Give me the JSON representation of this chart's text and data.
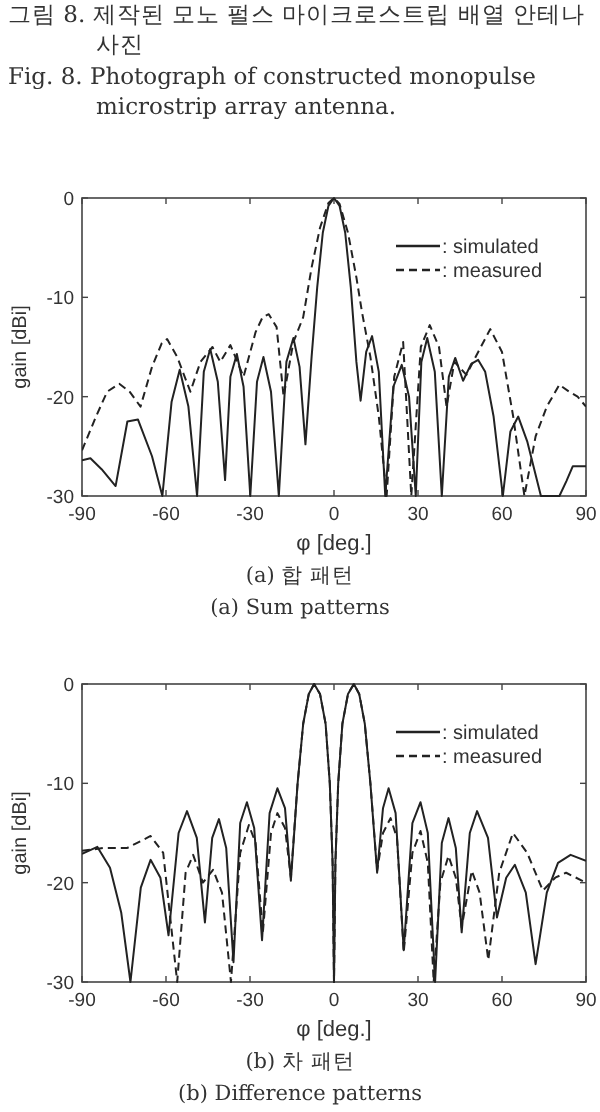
{
  "chart_data": [
    {
      "type": "line",
      "title": "(a) 합 패턴",
      "subtitle": "(a) Sum patterns",
      "xlabel": "φ [deg.]",
      "ylabel": "gain [dBi]",
      "annotations": [
        "그림 8. 제작된 모노 펄스 마이크로스트립 배열 안테나 사진",
        "Fig. 8. Photograph of constructed monopulse microstrip array antenna."
      ],
      "xlim": [
        -90,
        90
      ],
      "ylim": [
        -30,
        0
      ],
      "xticks": [
        -90,
        -60,
        -30,
        0,
        30,
        60,
        90
      ],
      "yticks": [
        -30,
        -20,
        -10,
        0
      ],
      "grid": false,
      "legend": "top right",
      "series": [
        {
          "name": ": simulated",
          "color": "#222222",
          "line_style": "solid",
          "x": [
            -90,
            -87,
            -83,
            -78,
            -73.8,
            -70,
            -65,
            -61.3,
            -58,
            -55.1,
            -52,
            -48.9,
            -46.5,
            -44.2,
            -41.5,
            -38.9,
            -37,
            -34.7,
            -32.3,
            -29.9,
            -27.5,
            -25.2,
            -22.5,
            -19.7,
            -17,
            -14.5,
            -12.3,
            -10.2,
            -8,
            -6,
            -4,
            -2,
            0,
            2,
            4,
            6,
            8,
            9.5,
            11.5,
            13.6,
            16,
            18.3,
            21.2,
            24.2,
            26.8,
            29.2,
            31.2,
            33.3,
            36,
            38.5,
            41,
            43.3,
            46.1,
            49,
            51.5,
            54,
            57,
            60.3,
            63,
            65.8,
            69,
            73.9,
            80.5,
            83,
            85.3,
            90
          ],
          "values": [
            -26.4,
            -26.2,
            -27.3,
            -29,
            -22.5,
            -22.3,
            -26,
            -30,
            -20.5,
            -17.3,
            -21,
            -30,
            -17.5,
            -15.2,
            -18.5,
            -28.4,
            -18,
            -15.7,
            -19,
            -30,
            -18.5,
            -16,
            -19.5,
            -30,
            -16.5,
            -14.1,
            -17,
            -24.8,
            -16,
            -9,
            -3.5,
            -0.8,
            0,
            -0.8,
            -3.5,
            -9,
            -16.5,
            -20.4,
            -15.5,
            -13.9,
            -17.5,
            -30,
            -19,
            -16.8,
            -20,
            -30,
            -16.5,
            -14.1,
            -17.5,
            -30,
            -18,
            -16.1,
            -18.4,
            -16.7,
            -16.3,
            -17.5,
            -22,
            -30,
            -23.5,
            -22,
            -24.5,
            -30,
            -30,
            -28.5,
            -27,
            -27
          ]
        },
        {
          "name": ": measured",
          "color": "#222222",
          "line_style": "dashed",
          "x": [
            -90,
            -85,
            -81,
            -76.7,
            -73,
            -69.1,
            -65,
            -61.5,
            -59.6,
            -56,
            -51.3,
            -47.7,
            -43.4,
            -40.6,
            -37,
            -32.3,
            -28,
            -25.5,
            -23.3,
            -20.5,
            -18,
            -14.5,
            -11,
            -8,
            -5,
            -2,
            0,
            2,
            5,
            8,
            10,
            13,
            16,
            18.8,
            21.5,
            24.7,
            27.6,
            31,
            34.2,
            37.5,
            40.2,
            43,
            47.3,
            51.5,
            55.8,
            60,
            64,
            68,
            72,
            76,
            80.5,
            84,
            87,
            90
          ],
          "values": [
            -25.4,
            -22,
            -19.5,
            -18.7,
            -19.5,
            -21,
            -17,
            -14.6,
            -14.2,
            -16,
            -19.5,
            -16.5,
            -15,
            -16.5,
            -14.8,
            -18,
            -13.5,
            -12,
            -11.7,
            -13,
            -20,
            -14.5,
            -12,
            -7,
            -3,
            -0.5,
            0,
            -0.6,
            -3.5,
            -8,
            -11.5,
            -16,
            -22,
            -30,
            -18,
            -14.5,
            -30,
            -15,
            -12.8,
            -15,
            -21,
            -16.5,
            -17.8,
            -15.5,
            -13.2,
            -15.5,
            -22,
            -30,
            -24,
            -21,
            -18.8,
            -19.5,
            -20,
            -21
          ]
        }
      ]
    },
    {
      "type": "line",
      "title": "(b) 차 패턴",
      "subtitle": "(b) Difference patterns",
      "xlabel": "φ [deg.]",
      "ylabel": "gain [dBi]",
      "xlim": [
        -90,
        90
      ],
      "ylim": [
        -30,
        0
      ],
      "xticks": [
        -90,
        -60,
        -30,
        0,
        30,
        60,
        90
      ],
      "yticks": [
        -30,
        -20,
        -10,
        0
      ],
      "grid": false,
      "legend": "top right",
      "series": [
        {
          "name": ": simulated",
          "color": "#222222",
          "line_style": "solid",
          "x": [
            -90,
            -84.5,
            -80,
            -76,
            -72.7,
            -69,
            -65.5,
            -62,
            -59.1,
            -55.5,
            -52.5,
            -49,
            -46.1,
            -43.5,
            -41.1,
            -38.5,
            -35.9,
            -33.5,
            -31.1,
            -28.5,
            -25.7,
            -23,
            -20.2,
            -17.5,
            -15.4,
            -13,
            -11,
            -9,
            -7.1,
            -5,
            -3,
            -1.5,
            -0.5,
            0,
            0.5,
            1.5,
            3,
            5,
            7.1,
            9,
            11,
            13,
            15.4,
            17.5,
            19.5,
            22,
            24.9,
            28,
            30.9,
            33.5,
            36.1,
            38.5,
            40.9,
            43.5,
            45.6,
            48.5,
            51.1,
            55,
            58.2,
            61.5,
            64.6,
            68.5,
            72,
            76,
            80,
            84.5,
            90
          ],
          "values": [
            -17.1,
            -16.4,
            -18.5,
            -23,
            -30,
            -20.5,
            -17.7,
            -19.5,
            -25.3,
            -15,
            -12.8,
            -15.5,
            -24,
            -15.5,
            -13.6,
            -16.5,
            -28,
            -14,
            -11.9,
            -14.5,
            -25.8,
            -13,
            -10.5,
            -12.5,
            -19.8,
            -10,
            -4,
            -1,
            0,
            -1,
            -4,
            -10,
            -18,
            -30,
            -18,
            -10,
            -4,
            -1,
            0,
            -1,
            -4,
            -10,
            -19,
            -12.5,
            -10.5,
            -13,
            -26.8,
            -14,
            -11.9,
            -15,
            -30,
            -16,
            -13.5,
            -16.5,
            -25,
            -15,
            -12.8,
            -15.5,
            -23.5,
            -19.5,
            -18.2,
            -21,
            -28.2,
            -21,
            -18,
            -17.2,
            -17.8
          ]
        },
        {
          "name": ": measured",
          "color": "#222222",
          "line_style": "dashed",
          "x": [
            -90,
            -82,
            -73.8,
            -65.5,
            -61,
            -56,
            -53,
            -50.3,
            -46.8,
            -43.2,
            -40,
            -36.8,
            -33.5,
            -30.4,
            -28,
            -25.4,
            -22.5,
            -20.2,
            -17.5,
            -15.4,
            -13,
            -11,
            -9,
            -7.1,
            -5,
            -3,
            -1.5,
            -0.5,
            0,
            0.5,
            1.5,
            3,
            5,
            7.1,
            9,
            11,
            13,
            15.4,
            17.5,
            20.2,
            22.5,
            24.9,
            28,
            30.9,
            33.5,
            35.6,
            38,
            40.9,
            43.5,
            45.6,
            49.2,
            52,
            55.1,
            59,
            63.9,
            69,
            74.6,
            79,
            82.9,
            90
          ],
          "values": [
            -16.8,
            -16.5,
            -16.5,
            -15.3,
            -17,
            -30,
            -19,
            -17.2,
            -20,
            -18.7,
            -21,
            -30,
            -17,
            -14.2,
            -16,
            -25,
            -15,
            -13,
            -14.5,
            -19.5,
            -10,
            -4,
            -1,
            0,
            -1,
            -4,
            -10,
            -18,
            -30,
            -18,
            -10,
            -4,
            -1,
            0,
            -1,
            -4,
            -10,
            -18.8,
            -15,
            -13.5,
            -15.5,
            -27,
            -17,
            -14.8,
            -18,
            -30,
            -20,
            -17.3,
            -19.5,
            -24.5,
            -18.8,
            -21,
            -27.8,
            -19,
            -15,
            -17,
            -20.8,
            -19.5,
            -19,
            -20
          ]
        }
      ]
    }
  ]
}
